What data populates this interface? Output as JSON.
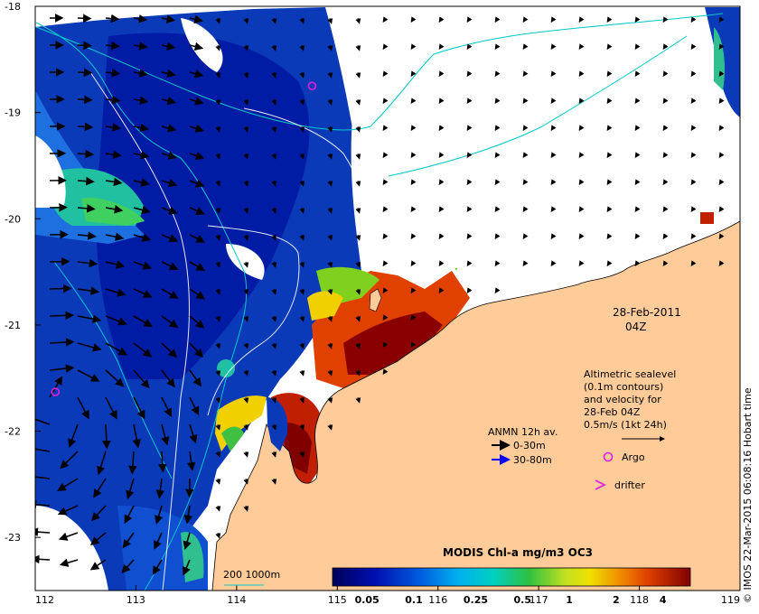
{
  "map": {
    "x_ticks": [
      "112",
      "113",
      "114",
      "115",
      "116",
      "117",
      "118",
      "119"
    ],
    "y_ticks": [
      "-18",
      "-19",
      "-20",
      "-21",
      "-22",
      "-23"
    ],
    "date_label": "28-Feb-2011",
    "time_label": "04Z",
    "credit": "© IMOS 22-Mar-2015 06:08:16 Hobart time"
  },
  "altimetry": {
    "lines": [
      "Altimetric sealevel",
      "(0.1m contours)",
      "and velocity for",
      "28-Feb 04Z",
      "0.5m/s (1kt 24h)"
    ]
  },
  "legend": {
    "anmn_title": "ANMN 12h av.",
    "anmn_shallow": "0-30m",
    "anmn_deep": "30-80m",
    "argo_label": "Argo",
    "drifter_label": "drifter",
    "depth_label": "200  1000m",
    "colors": {
      "shallow": "#000000",
      "deep": "#0000ff",
      "argo": "#e020e0",
      "isobath": "#00c8c8"
    }
  },
  "colorbar": {
    "title": "MODIS Chl-a mg/m3 OC3",
    "ticks": [
      "0.05",
      "0.1",
      "0.25",
      "0.5",
      "1",
      "2",
      "4"
    ]
  },
  "markers": {
    "argo": [
      {
        "lon": 114.75,
        "lat": -18.75
      },
      {
        "lon": 112.2,
        "lat": -21.63
      }
    ]
  }
}
